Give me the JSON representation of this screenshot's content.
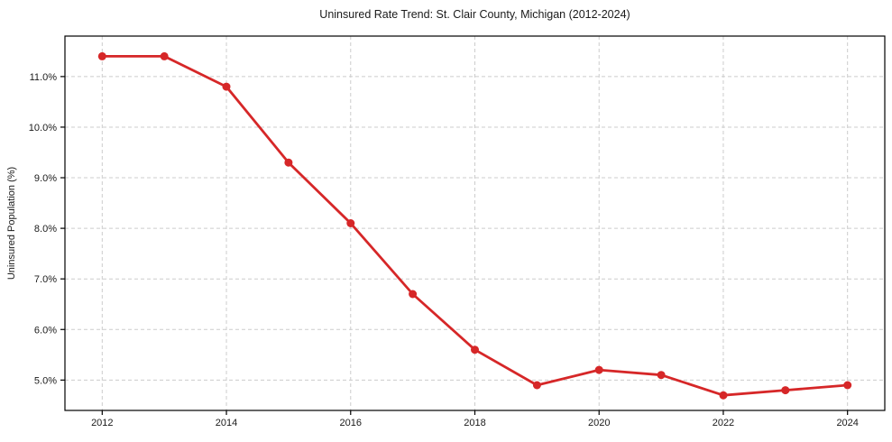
{
  "figure": {
    "background": "#ffffff"
  },
  "chart_data": {
    "type": "line",
    "title": "Uninsured Rate Trend: St. Clair County, Michigan (2012-2024)",
    "xlabel": "",
    "ylabel": "Uninsured Population (%)",
    "x": [
      2012,
      2013,
      2014,
      2015,
      2016,
      2017,
      2018,
      2019,
      2020,
      2021,
      2022,
      2023,
      2024
    ],
    "series": [
      {
        "name": "Uninsured rate",
        "color": "#d62728",
        "marker": "circle",
        "values": [
          11.4,
          11.4,
          10.8,
          9.3,
          8.1,
          6.7,
          5.6,
          4.9,
          5.2,
          5.1,
          4.7,
          4.8,
          4.9
        ]
      }
    ],
    "xticks": [
      2012,
      2014,
      2016,
      2018,
      2020,
      2022,
      2024
    ],
    "xtick_labels": [
      "2012",
      "2014",
      "2016",
      "2018",
      "2020",
      "2022",
      "2024"
    ],
    "yticks": [
      5,
      6,
      7,
      8,
      9,
      10,
      11
    ],
    "ytick_labels": [
      "5.0%",
      "6.0%",
      "7.0%",
      "8.0%",
      "9.0%",
      "10.0%",
      "11.0%"
    ],
    "xlim": [
      2011.4,
      2024.6
    ],
    "ylim": [
      4.4,
      11.8
    ],
    "grid": true,
    "grid_style": "dashed",
    "grid_color": "#cccccc",
    "spine_color": "#000000",
    "text_color": "#1a1a1a",
    "legend_position": "none"
  }
}
